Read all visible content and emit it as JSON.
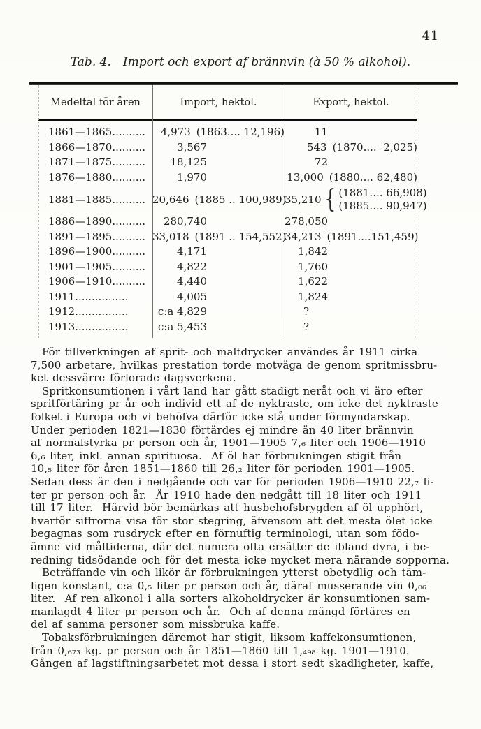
{
  "page": {
    "number": "41"
  },
  "table": {
    "title": {
      "label": "Tab. 4.",
      "text": "Import och export af brännvin (à 50 % alkohol)."
    },
    "columns": [
      "Medeltal för åren",
      "Import, hektol.",
      "Export, hektol."
    ],
    "brace_glyph": "{",
    "rows": [
      {
        "year": "1861—1865..........",
        "import": "4,973",
        "import_note": "(1863.... 12,196)",
        "export": "11",
        "export_note": ""
      },
      {
        "year": "1866—1870..........",
        "import": "3,567",
        "import_note": "",
        "export": "543",
        "export_note": "(1870....  2,025)"
      },
      {
        "year": "1871—1875..........",
        "import": "18,125",
        "import_note": "",
        "export": "72",
        "export_note": ""
      },
      {
        "year": "1876—1880..........",
        "import": "1,970",
        "import_note": "",
        "export": "13,000",
        "export_note": "(1880.... 62,480)"
      },
      {
        "year": "1881—1885..........",
        "import": "20,646",
        "import_note": "(1885 .. 100,989)",
        "export": "35,210",
        "export_brace": [
          "(1881.... 66,908)",
          "(1885.... 90,947)"
        ]
      },
      {
        "year": "1886—1890..........",
        "import": "280,740",
        "import_note": "",
        "export": "278,050",
        "export_note": ""
      },
      {
        "year": "1891—1895..........",
        "import": "33,018",
        "import_note": "(1891 .. 154,552)",
        "export": "34,213",
        "export_note": "(1891....151,459)"
      },
      {
        "year": "1896—1900..........",
        "import": "4,171",
        "import_note": "",
        "export": "1,842",
        "export_note": ""
      },
      {
        "year": "1901—1905..........",
        "import": "4,822",
        "import_note": "",
        "export": "1,760",
        "export_note": ""
      },
      {
        "year": "1906—1910..........",
        "import": "4,440",
        "import_note": "",
        "export": "1,622",
        "export_note": ""
      },
      {
        "year": "1911................",
        "import": "4,005",
        "import_note": "",
        "export": "1,824",
        "export_note": ""
      },
      {
        "year": "1912................",
        "import": "c:a 4,829",
        "import_note": "",
        "export": "?",
        "export_note": ""
      },
      {
        "year": "1913................",
        "import": "c:a 5,453",
        "import_note": "",
        "export": "?",
        "export_note": ""
      }
    ]
  },
  "body": {
    "paragraphs": [
      "För tillverkningen af sprit- och maltdrycker användes år 1911 cirka\n7,500 arbetare, hvilkas prestation torde motväga de genom spritmissbru-\nket dessvärre förlorade dagsverkena.",
      "Spritkonsumtionen i vårt land har gått stadigt neråt och vi äro efter\nspritförtäring pr år och individ ett af de nyktraste, om icke det nyktraste\nfolket i Europa och vi behöfva därför icke stå under förmyndarskap.\nUnder perioden 1821—1830 förtärdes ej mindre än 40 liter brännvin\naf normalstyrka pr person och år, 1901—1905 7,₆ liter och 1906—1910\n6,₆ liter, inkl. annan spirituosa.  Af öl har förbrukningen stigit från\n10,₅ liter för åren 1851—1860 till 26,₂ liter för perioden 1901—1905.\nSedan dess är den i nedgående och var för perioden 1906—1910 22,₇ li-\nter pr person och år.  År 1910 hade den nedgått till 18 liter och 1911\ntill 17 liter.  Härvid bör bemärkas att husbehofsbrygden af öl upphört,\nhvarför siffrorna visa för stor stegring, äfvensom att det mesta ölet icke\nbegagnas som rusdryck efter en förnuftig terminologi, utan som födo-\nämne vid måltiderna, där det numera ofta ersätter de ibland dyra, i be-\nredning tidsödande och för det mesta icke mycket mera närande sopporna.",
      "Beträffande vin och likör är förbrukningen ytterst obetydlig och täm-\nligen konstant, c:a 0,₅ liter pr person och år, däraf musserande vin 0,₀₆\nliter.  Af ren alkonol i alla sorters alkoholdrycker är konsumtionen sam-\nmanlagdt 4 liter pr person och år.  Och af denna mängd förtäres en\ndel af samma personer som missbruka kaffe.",
      "Tobaksförbrukningen däremot har stigit, liksom kaffekonsumtionen,\nfrån 0,₆₇₃ kg. pr person och år 1851—1860 till 1,₄₉₈ kg. 1901—1910.\nGången af lagstiftningsarbetet mot dessa i stort sedt skadligheter, kaffe,"
    ]
  }
}
